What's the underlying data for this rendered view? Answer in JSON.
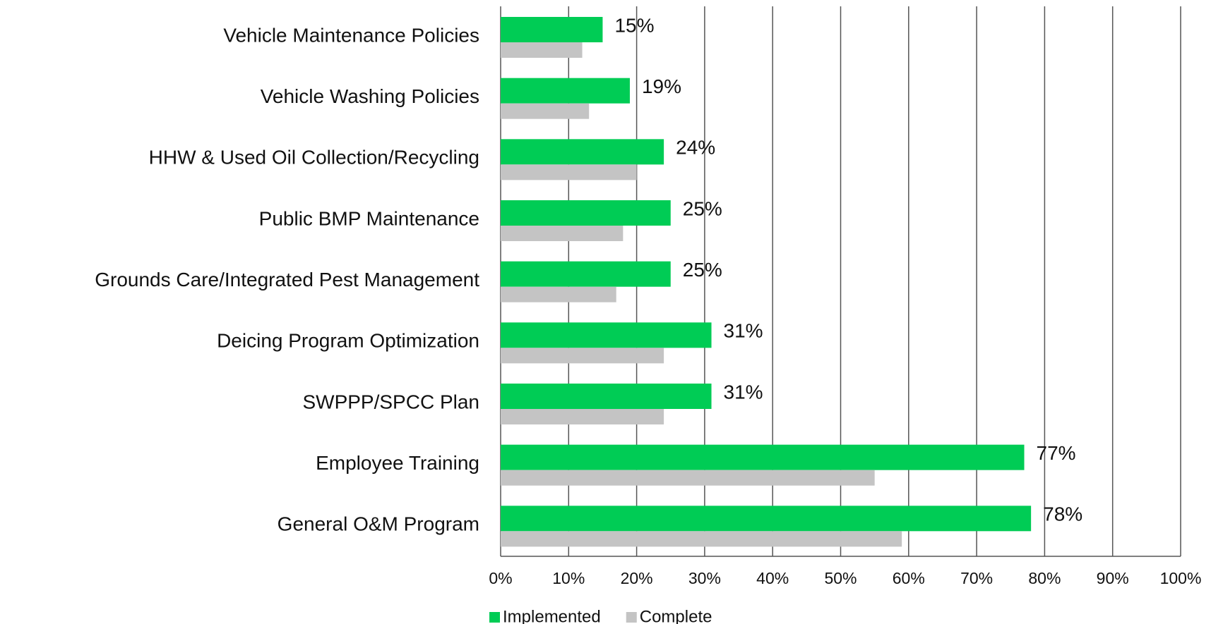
{
  "chart_data": {
    "type": "bar",
    "orientation": "horizontal",
    "categories": [
      "Vehicle Maintenance Policies",
      "Vehicle Washing Policies",
      "HHW & Used Oil Collection/Recycling",
      "Public BMP Maintenance",
      "Grounds Care/Integrated Pest Management",
      "Deicing Program Optimization",
      "SWPPP/SPCC Plan",
      "Employee Training",
      "General O&M Program"
    ],
    "series": [
      {
        "name": "Implemented",
        "color": "#00cc55",
        "values": [
          15,
          19,
          24,
          25,
          25,
          31,
          31,
          77,
          78
        ],
        "value_labels": [
          "15%",
          "19%",
          "24%",
          "25%",
          "25%",
          "31%",
          "31%",
          "77%",
          "78%"
        ]
      },
      {
        "name": "Complete",
        "color": "#c4c4c4",
        "values": [
          12,
          13,
          20,
          18,
          17,
          24,
          24,
          55,
          59
        ]
      }
    ],
    "xlim": [
      0,
      100
    ],
    "xticks": [
      {
        "value": 0,
        "label": "0%"
      },
      {
        "value": 10,
        "label": "10%"
      },
      {
        "value": 20,
        "label": "20%"
      },
      {
        "value": 30,
        "label": "30%"
      },
      {
        "value": 40,
        "label": "40%"
      },
      {
        "value": 50,
        "label": "50%"
      },
      {
        "value": 60,
        "label": "60%"
      },
      {
        "value": 70,
        "label": "70%"
      },
      {
        "value": 80,
        "label": "80%"
      },
      {
        "value": 90,
        "label": "90%"
      },
      {
        "value": 100,
        "label": "100%"
      }
    ],
    "grid": true,
    "legend": "bottom"
  }
}
